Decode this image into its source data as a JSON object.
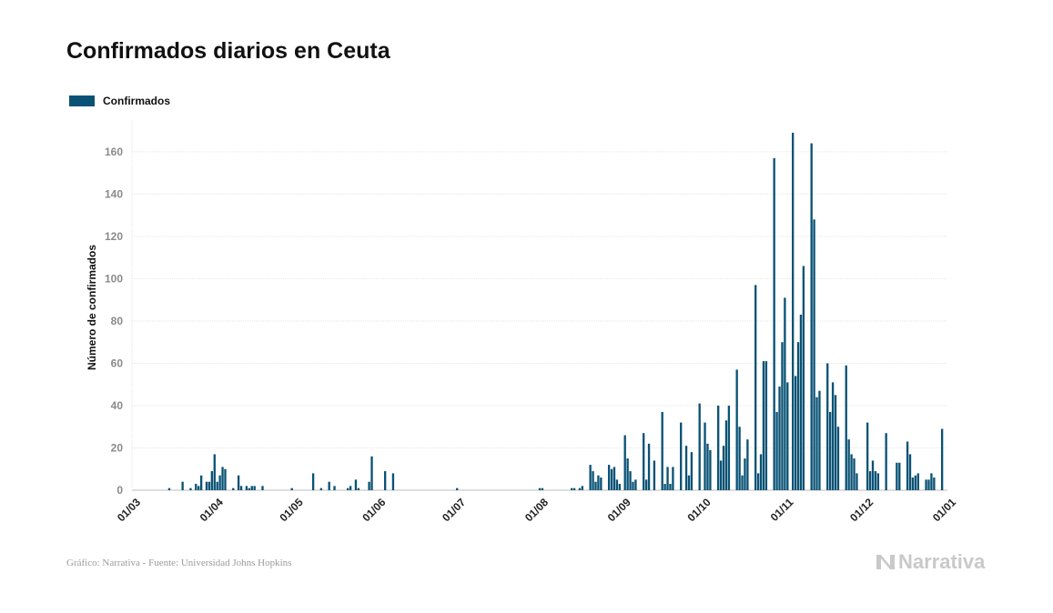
{
  "chart_data": {
    "type": "bar",
    "title": "Confirmados diarios en Ceuta",
    "xlabel": "",
    "ylabel": "Número de confirmados",
    "ylim": [
      0,
      175
    ],
    "yticks": [
      0,
      20,
      40,
      60,
      80,
      100,
      120,
      140,
      160
    ],
    "x_range": [
      "2020-03-01",
      "2021-01-01"
    ],
    "x_ticks": [
      {
        "date": "2020-03-01",
        "label": "01/03"
      },
      {
        "date": "2020-04-01",
        "label": "01/04"
      },
      {
        "date": "2020-05-01",
        "label": "01/05"
      },
      {
        "date": "2020-06-01",
        "label": "01/06"
      },
      {
        "date": "2020-07-01",
        "label": "01/07"
      },
      {
        "date": "2020-08-01",
        "label": "01/08"
      },
      {
        "date": "2020-09-01",
        "label": "01/09"
      },
      {
        "date": "2020-10-01",
        "label": "01/10"
      },
      {
        "date": "2020-11-01",
        "label": "01/11"
      },
      {
        "date": "2020-12-01",
        "label": "01/12"
      },
      {
        "date": "2021-01-01",
        "label": "01/01"
      }
    ],
    "grid": true,
    "legend_position": "top-left",
    "series": [
      {
        "name": "Confirmados",
        "color": "#0a5275",
        "points": [
          [
            "2020-03-15",
            1
          ],
          [
            "2020-03-20",
            4
          ],
          [
            "2020-03-23",
            1
          ],
          [
            "2020-03-25",
            3
          ],
          [
            "2020-03-26",
            2
          ],
          [
            "2020-03-27",
            7
          ],
          [
            "2020-03-29",
            4
          ],
          [
            "2020-03-30",
            4
          ],
          [
            "2020-03-31",
            9
          ],
          [
            "2020-04-01",
            17
          ],
          [
            "2020-04-02",
            4
          ],
          [
            "2020-04-03",
            7
          ],
          [
            "2020-04-04",
            11
          ],
          [
            "2020-04-05",
            10
          ],
          [
            "2020-04-08",
            1
          ],
          [
            "2020-04-10",
            7
          ],
          [
            "2020-04-11",
            2
          ],
          [
            "2020-04-13",
            2
          ],
          [
            "2020-04-14",
            1
          ],
          [
            "2020-04-15",
            2
          ],
          [
            "2020-04-16",
            2
          ],
          [
            "2020-04-19",
            2
          ],
          [
            "2020-04-30",
            1
          ],
          [
            "2020-05-08",
            8
          ],
          [
            "2020-05-11",
            1
          ],
          [
            "2020-05-14",
            4
          ],
          [
            "2020-05-16",
            2
          ],
          [
            "2020-05-21",
            1
          ],
          [
            "2020-05-22",
            2
          ],
          [
            "2020-05-24",
            5
          ],
          [
            "2020-05-25",
            1
          ],
          [
            "2020-05-29",
            4
          ],
          [
            "2020-05-30",
            16
          ],
          [
            "2020-06-04",
            9
          ],
          [
            "2020-06-07",
            8
          ],
          [
            "2020-07-01",
            1
          ],
          [
            "2020-08-01",
            1
          ],
          [
            "2020-08-02",
            1
          ],
          [
            "2020-08-13",
            1
          ],
          [
            "2020-08-14",
            1
          ],
          [
            "2020-08-16",
            1
          ],
          [
            "2020-08-17",
            2
          ],
          [
            "2020-08-20",
            12
          ],
          [
            "2020-08-21",
            9
          ],
          [
            "2020-08-22",
            4
          ],
          [
            "2020-08-23",
            7
          ],
          [
            "2020-08-24",
            6
          ],
          [
            "2020-08-27",
            12
          ],
          [
            "2020-08-28",
            10
          ],
          [
            "2020-08-29",
            11
          ],
          [
            "2020-08-30",
            5
          ],
          [
            "2020-08-31",
            3
          ],
          [
            "2020-09-02",
            26
          ],
          [
            "2020-09-03",
            15
          ],
          [
            "2020-09-04",
            9
          ],
          [
            "2020-09-05",
            4
          ],
          [
            "2020-09-06",
            5
          ],
          [
            "2020-09-09",
            27
          ],
          [
            "2020-09-10",
            5
          ],
          [
            "2020-09-11",
            22
          ],
          [
            "2020-09-13",
            14
          ],
          [
            "2020-09-16",
            37
          ],
          [
            "2020-09-17",
            3
          ],
          [
            "2020-09-18",
            11
          ],
          [
            "2020-09-19",
            3
          ],
          [
            "2020-09-20",
            11
          ],
          [
            "2020-09-23",
            32
          ],
          [
            "2020-09-25",
            21
          ],
          [
            "2020-09-26",
            7
          ],
          [
            "2020-09-27",
            18
          ],
          [
            "2020-09-30",
            41
          ],
          [
            "2020-10-02",
            32
          ],
          [
            "2020-10-03",
            22
          ],
          [
            "2020-10-04",
            19
          ],
          [
            "2020-10-07",
            40
          ],
          [
            "2020-10-08",
            14
          ],
          [
            "2020-10-09",
            21
          ],
          [
            "2020-10-10",
            33
          ],
          [
            "2020-10-11",
            40
          ],
          [
            "2020-10-14",
            57
          ],
          [
            "2020-10-15",
            30
          ],
          [
            "2020-10-16",
            7
          ],
          [
            "2020-10-17",
            15
          ],
          [
            "2020-10-18",
            24
          ],
          [
            "2020-10-21",
            97
          ],
          [
            "2020-10-22",
            8
          ],
          [
            "2020-10-23",
            17
          ],
          [
            "2020-10-24",
            61
          ],
          [
            "2020-10-25",
            61
          ],
          [
            "2020-10-28",
            157
          ],
          [
            "2020-10-29",
            37
          ],
          [
            "2020-10-30",
            49
          ],
          [
            "2020-10-31",
            70
          ],
          [
            "2020-11-01",
            91
          ],
          [
            "2020-11-02",
            51
          ],
          [
            "2020-11-04",
            169
          ],
          [
            "2020-11-05",
            54
          ],
          [
            "2020-11-06",
            70
          ],
          [
            "2020-11-07",
            83
          ],
          [
            "2020-11-08",
            106
          ],
          [
            "2020-11-11",
            164
          ],
          [
            "2020-11-12",
            128
          ],
          [
            "2020-11-13",
            44
          ],
          [
            "2020-11-14",
            47
          ],
          [
            "2020-11-17",
            60
          ],
          [
            "2020-11-18",
            37
          ],
          [
            "2020-11-19",
            51
          ],
          [
            "2020-11-20",
            45
          ],
          [
            "2020-11-21",
            30
          ],
          [
            "2020-11-24",
            59
          ],
          [
            "2020-11-25",
            24
          ],
          [
            "2020-11-26",
            17
          ],
          [
            "2020-11-27",
            15
          ],
          [
            "2020-11-28",
            8
          ],
          [
            "2020-12-02",
            32
          ],
          [
            "2020-12-03",
            9
          ],
          [
            "2020-12-04",
            14
          ],
          [
            "2020-12-05",
            9
          ],
          [
            "2020-12-06",
            8
          ],
          [
            "2020-12-09",
            27
          ],
          [
            "2020-12-13",
            13
          ],
          [
            "2020-12-14",
            13
          ],
          [
            "2020-12-17",
            23
          ],
          [
            "2020-12-18",
            17
          ],
          [
            "2020-12-19",
            6
          ],
          [
            "2020-12-20",
            7
          ],
          [
            "2020-12-21",
            8
          ],
          [
            "2020-12-24",
            5
          ],
          [
            "2020-12-25",
            5
          ],
          [
            "2020-12-26",
            8
          ],
          [
            "2020-12-27",
            6
          ],
          [
            "2020-12-30",
            29
          ]
        ]
      }
    ]
  },
  "footer": {
    "source": "Gráfico: Narrativa - Fuente: Universidad Johns Hopkins",
    "brand": "Narrativa",
    "brand_icon": "narrativa-logo-icon"
  }
}
